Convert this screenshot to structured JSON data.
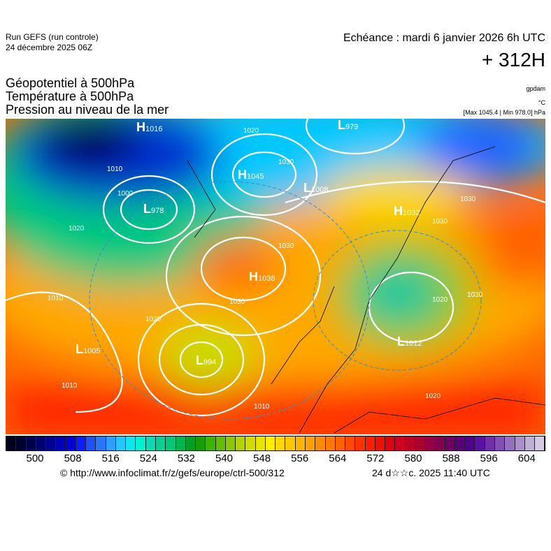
{
  "header": {
    "run": "Run GEFS (run controle)",
    "run_date": "24 décembre 2025 06Z",
    "echeance": "Echéance : mardi 6 janvier 2026 6h UTC",
    "lead": "+ 312H"
  },
  "titles": [
    "Géopotentiel à 500hPa",
    "Température à 500hPa",
    "Pression au niveau de la mer"
  ],
  "units": {
    "geopotential": "gpdam",
    "temperature": "°C",
    "pressure": "[Max 1045.4 | Min 978.0] hPa"
  },
  "centers": [
    {
      "type": "H",
      "value": "1016"
    },
    {
      "type": "L",
      "value": "979"
    },
    {
      "type": "H",
      "value": "1045"
    },
    {
      "type": "L",
      "value": "1008"
    },
    {
      "type": "L",
      "value": "978"
    },
    {
      "type": "H",
      "value": "1038"
    },
    {
      "type": "L",
      "value": "1005"
    },
    {
      "type": "L",
      "value": "994"
    },
    {
      "type": "H",
      "value": "1032"
    },
    {
      "type": "L",
      "value": "1012"
    }
  ],
  "isobar_labels": [
    "1020",
    "1030",
    "1010",
    "1000",
    "1020",
    "1030",
    "1030",
    "1030",
    "1020",
    "1010",
    "1010",
    "1030",
    "1030",
    "1020",
    "1010",
    "1020"
  ],
  "colorbar": {
    "ticks": [
      "500",
      "508",
      "516",
      "524",
      "532",
      "540",
      "548",
      "556",
      "564",
      "572",
      "580",
      "588",
      "596",
      "604"
    ],
    "colors": [
      "#00001e",
      "#000030",
      "#000050",
      "#000070",
      "#000090",
      "#0000b4",
      "#0000dc",
      "#0a1eff",
      "#1e50ff",
      "#2878ff",
      "#2ca0ff",
      "#22c8ff",
      "#10e6f0",
      "#00f0d2",
      "#00dcb4",
      "#00d296",
      "#00c878",
      "#00b450",
      "#00a028",
      "#14a000",
      "#3cb400",
      "#64be00",
      "#8cc800",
      "#b4d200",
      "#d2dc00",
      "#e6e600",
      "#ffee00",
      "#ffd800",
      "#ffc800",
      "#ffb400",
      "#ffa000",
      "#ff8c00",
      "#ff7800",
      "#ff6400",
      "#ff4800",
      "#ff3200",
      "#ff1e00",
      "#f01000",
      "#e00010",
      "#d20020",
      "#be0028",
      "#aa0032",
      "#960046",
      "#820050",
      "#6e0064",
      "#5a0078",
      "#50008c",
      "#5a10a0",
      "#7030a8",
      "#8250b4",
      "#9670c0",
      "#aa90cc",
      "#c0b0d8",
      "#d4c8e4"
    ]
  },
  "footer": {
    "url": "© http://www.infoclimat.fr/z/gefs/europe/ctrl-500/312",
    "stamp": "24 d☆☆c. 2025 11:40 UTC"
  }
}
